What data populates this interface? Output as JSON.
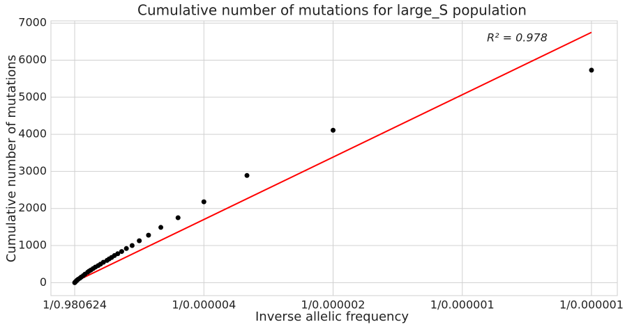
{
  "chart_data": {
    "type": "scatter",
    "title": "Cumulative number of mutations for large_S population",
    "xlabel": "Inverse allelic frequency",
    "ylabel": "Cumulative number of mutations",
    "annotation": "R² =  0.978",
    "points": {
      "color": "#000000",
      "x": [
        1000000,
        500000,
        333333,
        250000,
        200000,
        166667,
        142857,
        125000,
        111111,
        100000,
        90909,
        83333,
        76923,
        71429,
        66667,
        62500,
        55556,
        50000,
        45455,
        40000,
        35714,
        31250,
        27778,
        25000,
        20000,
        16667,
        12500,
        10000,
        6667,
        5000,
        3333,
        2000,
        1000,
        1
      ],
      "y": [
        5730,
        4110,
        2890,
        2180,
        1750,
        1490,
        1280,
        1130,
        1000,
        920,
        840,
        780,
        730,
        680,
        640,
        600,
        550,
        500,
        460,
        420,
        380,
        340,
        310,
        280,
        230,
        190,
        150,
        120,
        90,
        70,
        50,
        30,
        15,
        0
      ]
    },
    "fit": {
      "color": "#ff0000",
      "x": [
        1,
        1000000
      ],
      "y": [
        20,
        6750
      ]
    },
    "xlim": [
      -46000,
      1050000
    ],
    "xticks": [
      {
        "value": 1,
        "label": "1/0.980624"
      },
      {
        "value": 250000,
        "label": "1/0.000004"
      },
      {
        "value": 500000,
        "label": "1/0.000002"
      },
      {
        "value": 750000,
        "label": "1/0.000001"
      },
      {
        "value": 1000000,
        "label": "1/0.000001"
      }
    ],
    "ylim": [
      -350,
      7060
    ],
    "yticks": [
      0,
      1000,
      2000,
      3000,
      4000,
      5000,
      6000,
      7000
    ],
    "grid": true
  }
}
